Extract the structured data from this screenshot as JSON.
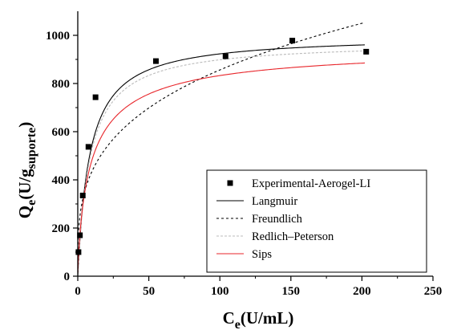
{
  "chart_data": {
    "type": "scatter",
    "xlabel": {
      "main": "C",
      "sub": "e",
      "rest": "(U/mL)"
    },
    "ylabel": {
      "main": "Q",
      "sub": "e",
      "mid": "(U/g",
      "sub2": "suporte",
      "rest": ")"
    },
    "xlim": [
      0,
      250
    ],
    "ylim": [
      0,
      1100
    ],
    "xticks": [
      0,
      50,
      100,
      150,
      200,
      250
    ],
    "yticks": [
      0,
      200,
      400,
      600,
      800,
      1000
    ],
    "grid": false,
    "legend_position": "bottom-right",
    "series": [
      {
        "name": "Experimental-Aerogel-LI",
        "kind": "points",
        "marker": "square",
        "color": "#000000",
        "x": [
          0.5,
          1.5,
          3.5,
          7.5,
          12.5,
          55,
          104,
          151,
          203
        ],
        "y": [
          100,
          170,
          335,
          537,
          743,
          893,
          913,
          978,
          932
        ]
      },
      {
        "name": "Langmuir",
        "kind": "langmuir",
        "color": "#000000",
        "dash": "",
        "params": {
          "qmax": 1000,
          "k": 0.12
        }
      },
      {
        "name": "Freundlich",
        "kind": "freundlich",
        "color": "#000000",
        "dash": "3,3",
        "params": {
          "kf": 221,
          "n": 3.4
        }
      },
      {
        "name": "Redlich–Peterson",
        "kind": "redlich_peterson",
        "color": "#bbbbbb",
        "dash": "3,2",
        "params": {
          "kr": 115,
          "ar": 0.118,
          "beta": 1.0
        }
      },
      {
        "name": "Sips",
        "kind": "sips",
        "color": "#e8262b",
        "dash": "",
        "params": {
          "qmax": 965,
          "ks": 0.1,
          "n": 1.25
        }
      }
    ]
  }
}
